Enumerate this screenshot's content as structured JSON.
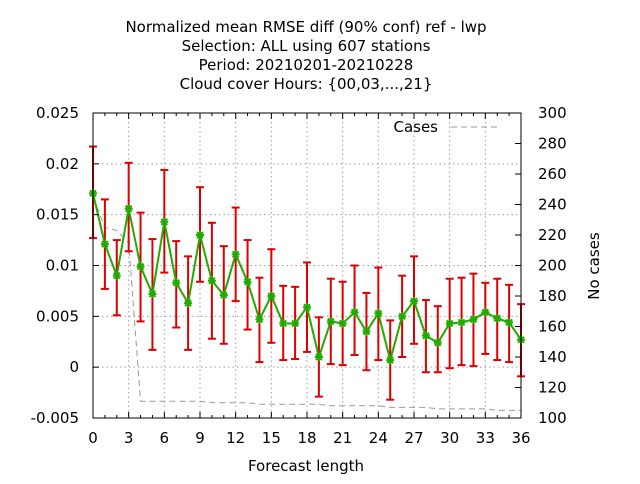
{
  "chart_data": {
    "type": "line",
    "title": [
      "Normalized mean RMSE diff (90% conf) ref - lwp",
      "Selection: ALL using   607 stations",
      "Period: 20210201-20210228",
      "Cloud cover   Hours: {00,03,...,21}"
    ],
    "xlabel": "Forecast length",
    "ylabel": "",
    "y2label": "No cases",
    "xlim": [
      0,
      36
    ],
    "ylim": [
      -0.005,
      0.025
    ],
    "y2lim": [
      100,
      300
    ],
    "xticks": [
      "0",
      "3",
      "6",
      "9",
      "12",
      "15",
      "18",
      "21",
      "24",
      "27",
      "30",
      "33",
      "36"
    ],
    "yticks": [
      "-0.005",
      "0",
      "0.005",
      "0.01",
      "0.015",
      "0.02",
      "0.025"
    ],
    "y2ticks": [
      "100",
      "120",
      "140",
      "160",
      "180",
      "200",
      "220",
      "240",
      "260",
      "280",
      "300"
    ],
    "grid": true,
    "legend": {
      "position": "top-right",
      "entries": [
        "Cases"
      ]
    },
    "colors": {
      "line": "#22aa00",
      "errorbar": "#dd0000",
      "marker": "#22aa00",
      "cases": "#999999"
    },
    "series": [
      {
        "x": [
          0,
          1,
          2,
          3,
          4,
          5,
          6,
          7,
          8,
          9,
          10,
          11,
          12,
          13,
          14,
          15,
          16,
          17,
          18,
          19,
          20,
          21,
          22,
          23,
          24,
          25,
          26,
          27,
          28,
          29,
          30,
          31,
          32,
          33,
          34,
          35,
          36
        ],
        "values": [
          0.0171,
          0.0121,
          0.009,
          0.0156,
          0.0099,
          0.0072,
          0.0143,
          0.0083,
          0.0063,
          0.013,
          0.0085,
          0.0071,
          0.0111,
          0.0084,
          0.0047,
          0.007,
          0.0043,
          0.0043,
          0.0059,
          0.001,
          0.0045,
          0.0043,
          0.0054,
          0.0035,
          0.0053,
          0.0007,
          0.005,
          0.0065,
          0.0031,
          0.0024,
          0.0043,
          0.0044,
          0.0047,
          0.0054,
          0.0048,
          0.0044,
          0.0027
        ],
        "lower": [
          0.0127,
          0.0077,
          0.0051,
          0.0114,
          0.0045,
          0.0017,
          0.0093,
          0.0039,
          0.0017,
          0.0084,
          0.0028,
          0.0023,
          0.0065,
          0.0037,
          0.0005,
          0.0024,
          0.0007,
          0.0008,
          0.0015,
          -0.0029,
          0.0003,
          0.0002,
          0.0012,
          -0.0003,
          0.0007,
          -0.0032,
          0.001,
          0.0023,
          -0.0005,
          -0.0005,
          -0.0001,
          0.0002,
          0.0001,
          0.0013,
          0.0007,
          0.0005,
          -0.0009
        ],
        "upper": [
          0.0217,
          0.0165,
          0.0125,
          0.0201,
          0.0152,
          0.0126,
          0.0194,
          0.0124,
          0.0109,
          0.0177,
          0.0142,
          0.0119,
          0.0157,
          0.0125,
          0.0088,
          0.0116,
          0.008,
          0.0079,
          0.0103,
          0.0049,
          0.0087,
          0.0084,
          0.01,
          0.0073,
          0.0098,
          0.0046,
          0.009,
          0.0109,
          0.0066,
          0.006,
          0.0087,
          0.0088,
          0.0092,
          0.0083,
          0.0087,
          0.0081,
          0.0062
        ]
      },
      {
        "name": "Cases",
        "axis": "y2",
        "x": [
          0,
          1,
          2,
          3,
          4,
          5,
          6,
          7,
          8,
          9,
          10,
          11,
          12,
          13,
          14,
          15,
          16,
          17,
          18,
          19,
          20,
          21,
          22,
          23,
          24,
          25,
          26,
          27,
          28,
          29,
          30,
          31,
          32,
          33,
          34,
          35,
          36
        ],
        "values": [
          245,
          225,
          223,
          215,
          111,
          111,
          111,
          111,
          111,
          111,
          110,
          110,
          110,
          110,
          109,
          109,
          109,
          109,
          109,
          109,
          108,
          108,
          108,
          108,
          108,
          107,
          107,
          107,
          107,
          106,
          106,
          106,
          106,
          106,
          105,
          105,
          105
        ]
      }
    ]
  }
}
